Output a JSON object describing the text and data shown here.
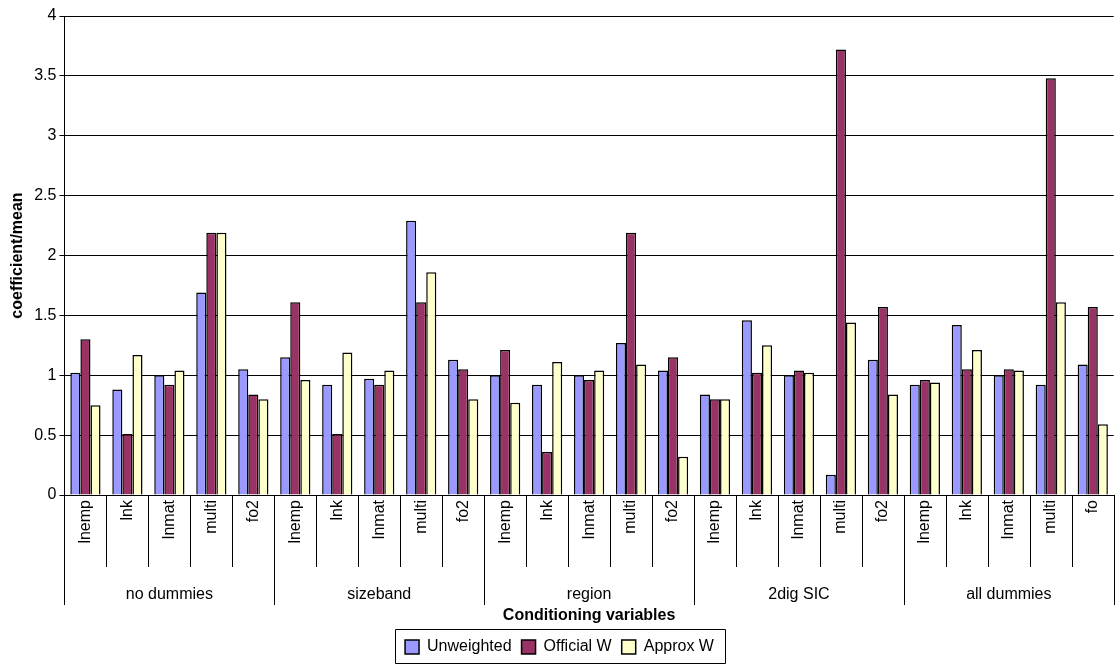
{
  "chart_data": {
    "type": "bar",
    "xlabel": "Conditioning variables",
    "ylabel": "coefficient/mean",
    "categories": [
      "lnemp",
      "lnk",
      "lnmat",
      "multi",
      "fo2",
      "lnemp",
      "lnk",
      "lnmat",
      "multi",
      "fo2",
      "lnemp",
      "lnk",
      "lnmat",
      "multi",
      "fo2",
      "lnemp",
      "lnk",
      "lnmat",
      "multi",
      "fo2",
      "lnemp",
      "lnk",
      "lnmat",
      "multi",
      "fo"
    ],
    "annotations": [
      "no dummies",
      "sizeband",
      "region",
      "2dig SIC",
      "all dummies"
    ],
    "series": [
      {
        "name": "Unweighted",
        "color": "#9999ff",
        "values": [
          1.02,
          0.88,
          1.0,
          1.69,
          1.05,
          1.15,
          0.92,
          0.97,
          2.29,
          1.13,
          1.0,
          0.92,
          1.0,
          1.27,
          1.04,
          0.84,
          1.46,
          1.0,
          0.17,
          1.13,
          0.92,
          1.42,
          1.0,
          0.92,
          1.09
        ]
      },
      {
        "name": "Official W",
        "color": "#993366",
        "values": [
          1.3,
          0.51,
          0.92,
          2.19,
          0.84,
          1.61,
          0.51,
          0.92,
          1.61,
          1.05,
          1.21,
          0.36,
          0.96,
          2.19,
          1.15,
          0.8,
          1.02,
          1.04,
          3.72,
          1.57,
          0.96,
          1.05,
          1.05,
          3.48,
          1.57
        ]
      },
      {
        "name": "Approx W",
        "color": "#ffffcc",
        "values": [
          0.75,
          1.17,
          1.04,
          2.19,
          0.8,
          0.96,
          1.19,
          1.04,
          1.86,
          0.8,
          0.77,
          1.11,
          1.04,
          1.09,
          0.32,
          0.8,
          1.25,
          1.02,
          1.44,
          0.84,
          0.94,
          1.21,
          1.04,
          1.61,
          0.59
        ]
      }
    ],
    "ylim": [
      0,
      4
    ],
    "yticks": [
      0,
      0.5,
      1,
      1.5,
      2,
      2.5,
      3,
      3.5,
      4
    ],
    "grid": "y",
    "legend": "bottom"
  }
}
